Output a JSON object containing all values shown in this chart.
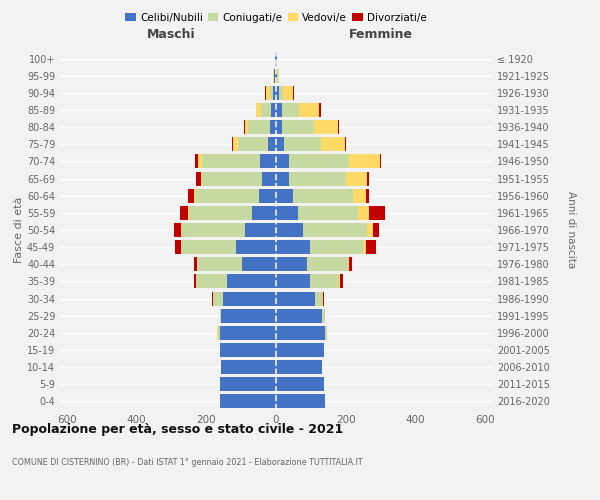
{
  "age_groups": [
    "0-4",
    "5-9",
    "10-14",
    "15-19",
    "20-24",
    "25-29",
    "30-34",
    "35-39",
    "40-44",
    "45-49",
    "50-54",
    "55-59",
    "60-64",
    "65-69",
    "70-74",
    "75-79",
    "80-84",
    "85-89",
    "90-94",
    "95-99",
    "100+"
  ],
  "birth_years": [
    "2016-2020",
    "2011-2015",
    "2006-2010",
    "2001-2005",
    "1996-2000",
    "1991-1995",
    "1986-1990",
    "1981-1985",
    "1976-1980",
    "1971-1975",
    "1966-1970",
    "1961-1965",
    "1956-1960",
    "1951-1955",
    "1946-1950",
    "1941-1945",
    "1936-1940",
    "1931-1935",
    "1926-1930",
    "1921-1925",
    "≤ 1920"
  ],
  "maschi_celibe": [
    162,
    162,
    158,
    162,
    162,
    158,
    152,
    142,
    98,
    115,
    88,
    68,
    48,
    40,
    45,
    22,
    18,
    15,
    10,
    5,
    2
  ],
  "maschi_coniugato": [
    0,
    0,
    0,
    0,
    4,
    4,
    28,
    88,
    128,
    158,
    182,
    182,
    182,
    172,
    168,
    88,
    62,
    28,
    8,
    2,
    0
  ],
  "maschi_vedovo": [
    0,
    0,
    0,
    0,
    4,
    0,
    0,
    0,
    0,
    0,
    4,
    4,
    4,
    4,
    12,
    12,
    8,
    14,
    10,
    2,
    0
  ],
  "maschi_divorziato": [
    0,
    0,
    0,
    0,
    0,
    0,
    4,
    4,
    8,
    18,
    18,
    22,
    18,
    14,
    8,
    4,
    4,
    0,
    4,
    0,
    0
  ],
  "femmine_celibe": [
    142,
    138,
    132,
    138,
    142,
    132,
    112,
    98,
    88,
    98,
    78,
    62,
    48,
    38,
    38,
    22,
    18,
    18,
    8,
    4,
    2
  ],
  "femmine_coniugato": [
    0,
    0,
    0,
    0,
    4,
    8,
    22,
    82,
    118,
    152,
    182,
    172,
    172,
    162,
    172,
    108,
    92,
    48,
    12,
    2,
    0
  ],
  "femmine_vedovo": [
    0,
    0,
    0,
    0,
    0,
    0,
    0,
    4,
    4,
    8,
    18,
    32,
    38,
    62,
    88,
    68,
    68,
    58,
    28,
    4,
    2
  ],
  "femmine_divorziato": [
    0,
    0,
    0,
    0,
    0,
    0,
    4,
    8,
    8,
    28,
    18,
    48,
    8,
    4,
    4,
    4,
    4,
    4,
    4,
    0,
    0
  ],
  "colors": {
    "celibe": "#4472C4",
    "coniugato": "#c5d9a0",
    "vedovo": "#FFD966",
    "divorziato": "#C00000"
  },
  "xlim": 620,
  "title": "Popolazione per età, sesso e stato civile - 2021",
  "subtitle": "COMUNE DI CISTERNINO (BR) - Dati ISTAT 1° gennaio 2021 - Elaborazione TUTTITALIA.IT",
  "ylabel_left": "Fasce di età",
  "ylabel_right": "Anni di nascita",
  "xlabel_maschi": "Maschi",
  "xlabel_femmine": "Femmine",
  "legend_labels": [
    "Celibi/Nubili",
    "Coniugati/e",
    "Vedovi/e",
    "Divorziati/e"
  ],
  "bg_color": "#f2f2f2",
  "xtick_vals": [
    -600,
    -400,
    -200,
    0,
    200,
    400,
    600
  ]
}
